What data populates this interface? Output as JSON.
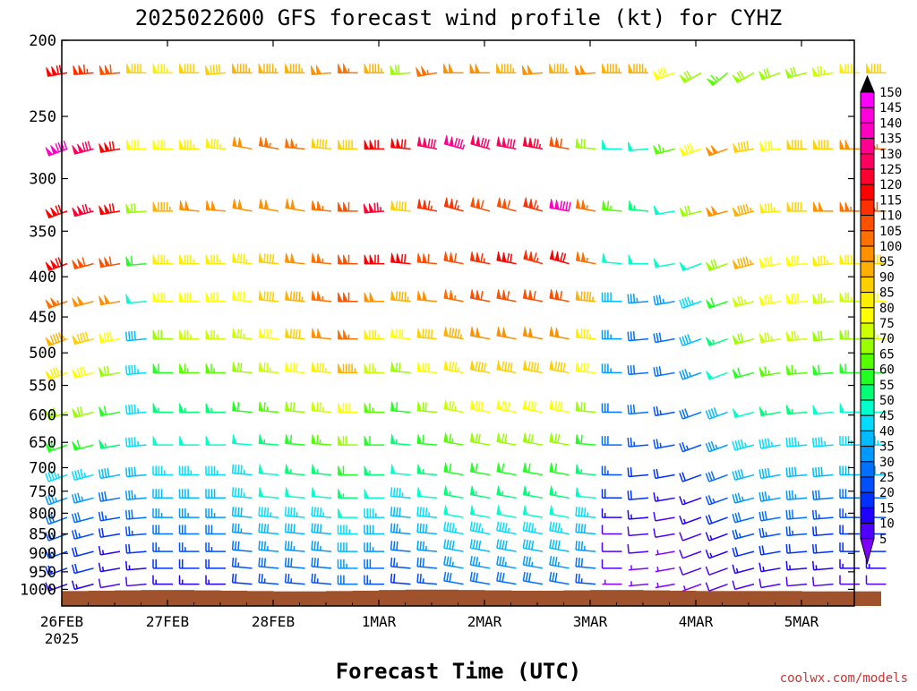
{
  "chart_data": {
    "type": "wind-barb-profile",
    "title": "2025022600 GFS forecast wind profile (kt) for CYHZ",
    "xlabel": "Forecast Time (UTC)",
    "ylabel": "",
    "credit": "coolwx.com/models",
    "x_ticks": [
      {
        "day": 0,
        "label": "26FEB",
        "sublabel": "2025"
      },
      {
        "day": 1,
        "label": "27FEB",
        "sublabel": ""
      },
      {
        "day": 2,
        "label": "28FEB",
        "sublabel": ""
      },
      {
        "day": 3,
        "label": "1MAR",
        "sublabel": ""
      },
      {
        "day": 4,
        "label": "2MAR",
        "sublabel": ""
      },
      {
        "day": 5,
        "label": "3MAR",
        "sublabel": ""
      },
      {
        "day": 6,
        "label": "4MAR",
        "sublabel": ""
      },
      {
        "day": 7,
        "label": "5MAR",
        "sublabel": ""
      }
    ],
    "xlim_days": [
      0,
      7.5
    ],
    "y_ticks": [
      "200",
      "250",
      "300",
      "350",
      "400",
      "450",
      "500",
      "550",
      "600",
      "650",
      "700",
      "750",
      "800",
      "850",
      "900",
      "950",
      "1000"
    ],
    "ylim_hpa": [
      200,
      1050
    ],
    "y_scale": "log-pressure",
    "levels_hpa": [
      220,
      275,
      330,
      385,
      430,
      480,
      530,
      595,
      655,
      715,
      765,
      810,
      850,
      895,
      940,
      985
    ],
    "time_step_hours": 6,
    "surface_pressure_hpa": [
      1005,
      1004,
      1003,
      1002,
      1002,
      1003,
      1004,
      1005,
      1006,
      1006,
      1005,
      1004,
      1002,
      1001,
      1001,
      1002,
      1003,
      1004,
      1004,
      1003,
      1002,
      1002,
      1003,
      1004,
      1005,
      1005,
      1005,
      1005,
      1006,
      1006,
      1006,
      1006
    ],
    "colorbar": {
      "labels": [
        "150",
        "145",
        "140",
        "135",
        "130",
        "125",
        "120",
        "115",
        "110",
        "105",
        "100",
        "95",
        "90",
        "85",
        "80",
        "75",
        "70",
        "65",
        "60",
        "55",
        "50",
        "45",
        "40",
        "35",
        "30",
        "25",
        "20",
        "15",
        "10",
        "5"
      ],
      "colors": [
        "#ff00ff",
        "#ff00dd",
        "#ff00c0",
        "#ff0090",
        "#ff0060",
        "#ff0030",
        "#ff0000",
        "#ff3000",
        "#ff5000",
        "#ff7000",
        "#ff9000",
        "#ffb000",
        "#ffd000",
        "#ffee00",
        "#ffff00",
        "#ccff00",
        "#99ff00",
        "#55ff00",
        "#22ff22",
        "#00ff77",
        "#00ffcc",
        "#00ddff",
        "#00bbff",
        "#0099ff",
        "#0070ff",
        "#0050ff",
        "#0030ff",
        "#2000ff",
        "#5000ff",
        "#8000ff"
      ]
    },
    "series_by_level": [
      {
        "level_hpa": 220,
        "speed_kt": [
          120,
          115,
          110,
          90,
          85,
          90,
          90,
          95,
          95,
          95,
          100,
          105,
          95,
          70,
          105,
          100,
          100,
          95,
          100,
          95,
          100,
          95,
          95,
          80,
          70,
          65,
          70,
          70,
          70,
          75,
          85,
          90
        ],
        "dir_deg": [
          260,
          265,
          265,
          270,
          270,
          270,
          265,
          270,
          270,
          270,
          265,
          270,
          270,
          265,
          260,
          270,
          270,
          270,
          265,
          270,
          265,
          270,
          270,
          250,
          240,
          230,
          240,
          250,
          255,
          260,
          270,
          270
        ]
      },
      {
        "level_hpa": 275,
        "speed_kt": [
          140,
          130,
          120,
          80,
          80,
          85,
          85,
          100,
          105,
          105,
          90,
          90,
          120,
          120,
          130,
          135,
          130,
          130,
          125,
          110,
          70,
          50,
          50,
          65,
          80,
          100,
          90,
          80,
          90,
          90,
          100,
          105
        ],
        "dir_deg": [
          250,
          255,
          260,
          270,
          270,
          270,
          275,
          280,
          280,
          275,
          275,
          270,
          270,
          275,
          280,
          285,
          285,
          280,
          280,
          280,
          275,
          270,
          265,
          255,
          250,
          250,
          260,
          265,
          270,
          270,
          270,
          270
        ]
      },
      {
        "level_hpa": 330,
        "speed_kt": [
          120,
          125,
          120,
          70,
          95,
          100,
          100,
          100,
          100,
          100,
          105,
          110,
          125,
          90,
          115,
          115,
          110,
          110,
          115,
          140,
          105,
          65,
          55,
          50,
          70,
          100,
          95,
          85,
          90,
          100,
          105,
          110
        ],
        "dir_deg": [
          250,
          255,
          260,
          265,
          270,
          275,
          275,
          280,
          280,
          280,
          275,
          270,
          265,
          275,
          280,
          285,
          285,
          285,
          285,
          280,
          280,
          275,
          275,
          260,
          255,
          255,
          255,
          265,
          270,
          270,
          270,
          270
        ]
      },
      {
        "level_hpa": 385,
        "speed_kt": [
          120,
          110,
          110,
          60,
          85,
          85,
          85,
          85,
          90,
          100,
          105,
          110,
          120,
          120,
          110,
          110,
          115,
          120,
          115,
          120,
          105,
          50,
          50,
          50,
          50,
          70,
          95,
          80,
          80,
          85,
          85,
          90
        ],
        "dir_deg": [
          250,
          255,
          260,
          265,
          270,
          270,
          270,
          275,
          275,
          275,
          275,
          270,
          270,
          275,
          275,
          280,
          280,
          280,
          285,
          285,
          280,
          275,
          270,
          260,
          250,
          250,
          255,
          260,
          265,
          265,
          270,
          270
        ]
      },
      {
        "level_hpa": 430,
        "speed_kt": [
          105,
          100,
          100,
          50,
          80,
          80,
          80,
          80,
          90,
          95,
          105,
          110,
          100,
          95,
          100,
          105,
          110,
          110,
          110,
          110,
          95,
          40,
          35,
          35,
          45,
          60,
          75,
          80,
          80,
          75,
          75,
          80
        ],
        "dir_deg": [
          250,
          255,
          260,
          265,
          270,
          270,
          270,
          275,
          275,
          275,
          275,
          270,
          270,
          275,
          275,
          280,
          280,
          280,
          280,
          280,
          275,
          270,
          265,
          260,
          250,
          250,
          255,
          260,
          265,
          265,
          270,
          270
        ]
      },
      {
        "level_hpa": 480,
        "speed_kt": [
          95,
          90,
          80,
          40,
          70,
          75,
          75,
          75,
          80,
          90,
          100,
          105,
          85,
          80,
          90,
          95,
          100,
          100,
          100,
          100,
          85,
          35,
          30,
          30,
          40,
          55,
          70,
          75,
          75,
          70,
          70,
          75
        ],
        "dir_deg": [
          250,
          255,
          260,
          265,
          270,
          270,
          270,
          275,
          275,
          275,
          275,
          270,
          270,
          275,
          275,
          280,
          280,
          280,
          280,
          280,
          275,
          270,
          265,
          260,
          250,
          250,
          255,
          260,
          265,
          265,
          270,
          270
        ]
      },
      {
        "level_hpa": 530,
        "speed_kt": [
          85,
          80,
          70,
          45,
          60,
          65,
          65,
          70,
          75,
          80,
          85,
          95,
          75,
          70,
          80,
          85,
          90,
          90,
          90,
          90,
          80,
          35,
          30,
          30,
          35,
          50,
          60,
          65,
          65,
          60,
          60,
          60
        ],
        "dir_deg": [
          250,
          255,
          260,
          265,
          270,
          270,
          270,
          275,
          275,
          275,
          275,
          270,
          270,
          275,
          275,
          280,
          280,
          280,
          280,
          280,
          275,
          270,
          265,
          260,
          250,
          250,
          255,
          260,
          265,
          265,
          270,
          270
        ]
      },
      {
        "level_hpa": 595,
        "speed_kt": [
          70,
          70,
          60,
          45,
          55,
          55,
          55,
          60,
          65,
          70,
          75,
          80,
          65,
          60,
          70,
          75,
          80,
          80,
          80,
          80,
          70,
          30,
          30,
          25,
          30,
          40,
          50,
          55,
          55,
          50,
          50,
          50
        ],
        "dir_deg": [
          250,
          255,
          260,
          265,
          270,
          270,
          270,
          275,
          275,
          275,
          275,
          270,
          270,
          275,
          275,
          280,
          280,
          280,
          280,
          280,
          275,
          270,
          265,
          260,
          250,
          250,
          255,
          260,
          265,
          265,
          270,
          270
        ]
      },
      {
        "level_hpa": 655,
        "speed_kt": [
          60,
          60,
          55,
          45,
          50,
          50,
          50,
          50,
          55,
          60,
          65,
          70,
          60,
          55,
          60,
          65,
          70,
          70,
          70,
          70,
          60,
          30,
          25,
          25,
          25,
          35,
          45,
          45,
          45,
          45,
          45,
          45
        ],
        "dir_deg": [
          250,
          255,
          260,
          265,
          270,
          270,
          270,
          275,
          275,
          275,
          275,
          270,
          270,
          275,
          275,
          280,
          280,
          280,
          280,
          280,
          275,
          270,
          265,
          260,
          250,
          250,
          255,
          260,
          265,
          265,
          270,
          270
        ]
      },
      {
        "level_hpa": 715,
        "speed_kt": [
          45,
          45,
          40,
          40,
          45,
          45,
          45,
          45,
          50,
          55,
          55,
          60,
          55,
          50,
          55,
          60,
          60,
          60,
          60,
          60,
          55,
          25,
          20,
          20,
          20,
          30,
          40,
          40,
          40,
          40,
          40,
          40
        ],
        "dir_deg": [
          250,
          255,
          260,
          265,
          270,
          270,
          270,
          275,
          275,
          275,
          275,
          270,
          270,
          275,
          275,
          280,
          280,
          280,
          280,
          280,
          275,
          270,
          265,
          260,
          250,
          250,
          255,
          260,
          265,
          265,
          270,
          270
        ]
      },
      {
        "level_hpa": 765,
        "speed_kt": [
          35,
          35,
          30,
          35,
          40,
          40,
          40,
          45,
          50,
          50,
          50,
          55,
          50,
          45,
          50,
          55,
          55,
          55,
          55,
          55,
          50,
          20,
          20,
          15,
          15,
          25,
          35,
          35,
          35,
          30,
          30,
          30
        ],
        "dir_deg": [
          250,
          255,
          260,
          265,
          270,
          270,
          270,
          275,
          275,
          275,
          275,
          270,
          270,
          275,
          275,
          280,
          280,
          280,
          280,
          280,
          275,
          270,
          265,
          260,
          250,
          250,
          255,
          260,
          265,
          265,
          270,
          270
        ]
      },
      {
        "level_hpa": 810,
        "speed_kt": [
          30,
          30,
          25,
          30,
          35,
          35,
          35,
          40,
          45,
          45,
          45,
          50,
          45,
          40,
          45,
          50,
          50,
          50,
          50,
          50,
          45,
          15,
          15,
          10,
          15,
          20,
          30,
          30,
          30,
          25,
          25,
          25
        ],
        "dir_deg": [
          250,
          255,
          260,
          265,
          270,
          270,
          270,
          275,
          275,
          275,
          275,
          270,
          270,
          275,
          275,
          280,
          280,
          280,
          280,
          280,
          275,
          270,
          265,
          260,
          250,
          250,
          255,
          260,
          265,
          265,
          270,
          270
        ]
      },
      {
        "level_hpa": 850,
        "speed_kt": [
          25,
          25,
          20,
          25,
          30,
          30,
          30,
          35,
          40,
          40,
          40,
          45,
          40,
          35,
          40,
          45,
          45,
          45,
          45,
          45,
          40,
          10,
          10,
          10,
          10,
          15,
          25,
          25,
          25,
          20,
          20,
          20
        ],
        "dir_deg": [
          250,
          255,
          260,
          265,
          270,
          270,
          270,
          275,
          275,
          275,
          275,
          270,
          270,
          275,
          275,
          280,
          280,
          280,
          280,
          280,
          275,
          270,
          265,
          260,
          250,
          250,
          255,
          260,
          265,
          265,
          270,
          270
        ]
      },
      {
        "level_hpa": 895,
        "speed_kt": [
          25,
          20,
          15,
          20,
          25,
          25,
          25,
          30,
          35,
          35,
          35,
          40,
          35,
          30,
          35,
          40,
          40,
          40,
          40,
          40,
          35,
          10,
          10,
          5,
          10,
          15,
          20,
          20,
          20,
          20,
          20,
          20
        ],
        "dir_deg": [
          250,
          255,
          260,
          265,
          270,
          270,
          270,
          275,
          275,
          275,
          275,
          270,
          270,
          275,
          275,
          280,
          280,
          280,
          280,
          280,
          275,
          270,
          265,
          260,
          250,
          250,
          255,
          260,
          265,
          265,
          270,
          270
        ]
      },
      {
        "level_hpa": 940,
        "speed_kt": [
          20,
          20,
          15,
          15,
          20,
          20,
          20,
          25,
          30,
          30,
          30,
          35,
          30,
          25,
          30,
          35,
          35,
          35,
          35,
          35,
          30,
          10,
          5,
          5,
          10,
          10,
          15,
          15,
          15,
          15,
          15,
          15
        ],
        "dir_deg": [
          250,
          255,
          260,
          265,
          270,
          270,
          270,
          275,
          275,
          275,
          275,
          270,
          270,
          275,
          275,
          280,
          280,
          280,
          280,
          280,
          275,
          270,
          265,
          260,
          250,
          250,
          255,
          260,
          265,
          265,
          270,
          270
        ]
      },
      {
        "level_hpa": 985,
        "speed_kt": [
          15,
          15,
          10,
          10,
          15,
          15,
          15,
          20,
          25,
          25,
          25,
          30,
          25,
          20,
          25,
          30,
          30,
          30,
          30,
          30,
          25,
          5,
          5,
          5,
          5,
          10,
          10,
          10,
          10,
          10,
          10,
          10
        ],
        "dir_deg": [
          250,
          255,
          260,
          265,
          270,
          270,
          270,
          275,
          275,
          275,
          275,
          270,
          270,
          275,
          275,
          280,
          280,
          280,
          280,
          280,
          275,
          270,
          265,
          260,
          250,
          250,
          255,
          260,
          265,
          265,
          270,
          270
        ]
      }
    ],
    "grid": false,
    "legend": "colorbar-right",
    "colors": {
      "background": "#ffffff",
      "axis": "#000000",
      "terrain": "#a0522d",
      "credit": "#cc3333",
      "out_of_range": "#000000"
    }
  }
}
